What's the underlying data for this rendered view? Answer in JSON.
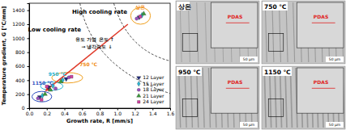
{
  "chart_data": {
    "type": "scatter",
    "x_label": "Growth rate, R [mm/s]",
    "y_label": "Temperature gradient, G [℃/mm]",
    "xlim": [
      0,
      1.6
    ],
    "ylim": [
      0,
      1500
    ],
    "xticks": [
      {
        "value": 0,
        "label": "0.0"
      },
      {
        "value": 0.2,
        "label": "0.2"
      },
      {
        "value": 0.4,
        "label": "0.4"
      },
      {
        "value": 0.6,
        "label": "0.6"
      },
      {
        "value": 0.8,
        "label": "0.8"
      },
      {
        "value": 1.0,
        "label": "1.0"
      },
      {
        "value": 1.2,
        "label": "1.2"
      },
      {
        "value": 1.4,
        "label": "1.4"
      },
      {
        "value": 1.6,
        "label": "1.6"
      }
    ],
    "yticks": [
      0,
      200,
      400,
      600,
      800,
      1000,
      1200,
      1400
    ],
    "legend": "lower right",
    "series": [
      {
        "name": "12 Layer",
        "color": "#1f2a7a",
        "marker": "triangle-down",
        "x": [
          1.25,
          0.42,
          0.22,
          0.12
        ],
        "values": [
          1300,
          420,
          300,
          160
        ]
      },
      {
        "name": "15 Layer",
        "color": "#29b6d6",
        "marker": "diamond",
        "x": [
          1.28,
          0.38,
          0.27,
          0.15
        ],
        "values": [
          1330,
          400,
          320,
          180
        ]
      },
      {
        "name": "18 Layer",
        "color": "#9b4fc0",
        "marker": "circle",
        "x": [
          1.22,
          0.45,
          0.3,
          0.1
        ],
        "values": [
          1280,
          440,
          280,
          140
        ]
      },
      {
        "name": "21 Layer",
        "color": "#3a9a3a",
        "marker": "triangle",
        "x": [
          1.3,
          0.36,
          0.24,
          0.18
        ],
        "values": [
          1350,
          380,
          260,
          200
        ]
      },
      {
        "name": "24 Layer",
        "color": "#d040a0",
        "marker": "square",
        "x": [
          1.26,
          0.48,
          0.2,
          0.14
        ],
        "values": [
          1310,
          450,
          310,
          120
        ]
      }
    ],
    "annotations": [
      "High cooling rate",
      "Low cooling rate",
      "유도 가열 온도 ↑",
      "→ 냉각속도 ↓",
      "상온",
      "750 ℃",
      "950 ℃",
      "1150 ℃"
    ]
  },
  "micrographs": [
    {
      "label": "상온",
      "annotation": "PDAS",
      "scale_bar": "50 μm"
    },
    {
      "label": "750 ℃",
      "annotation": "PDAS",
      "scale_bar": "50 μm"
    },
    {
      "label": "950 ℃",
      "annotation": "PDAS",
      "scale_bar": "50 μm"
    },
    {
      "label": "1150 ℃",
      "annotation": "PDAS",
      "scale_bar": "50 μm"
    }
  ]
}
